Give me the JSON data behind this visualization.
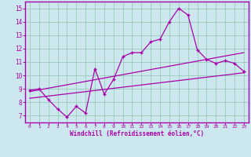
{
  "xlabel": "Windchill (Refroidissement éolien,°C)",
  "bg_color": "#cce8ee",
  "line_color": "#aa00aa",
  "grid_color": "#99ccbb",
  "xlim": [
    -0.5,
    23.5
  ],
  "ylim": [
    6.5,
    15.5
  ],
  "xticks": [
    0,
    1,
    2,
    3,
    4,
    5,
    6,
    7,
    8,
    9,
    10,
    11,
    12,
    13,
    14,
    15,
    16,
    17,
    18,
    19,
    20,
    21,
    22,
    23
  ],
  "yticks": [
    7,
    8,
    9,
    10,
    11,
    12,
    13,
    14,
    15
  ],
  "main_x": [
    0,
    1,
    2,
    3,
    4,
    5,
    6,
    7,
    8,
    9,
    10,
    11,
    12,
    13,
    14,
    15,
    16,
    17,
    18,
    19,
    20,
    21,
    22,
    23
  ],
  "main_y": [
    8.9,
    9.0,
    8.2,
    7.5,
    6.9,
    7.7,
    7.2,
    10.5,
    8.6,
    9.7,
    11.4,
    11.7,
    11.7,
    12.5,
    12.7,
    14.0,
    15.0,
    14.5,
    11.9,
    11.2,
    10.9,
    11.1,
    10.9,
    10.3
  ],
  "trend1_x": [
    0,
    23
  ],
  "trend1_y": [
    8.8,
    11.7
  ],
  "trend2_x": [
    0,
    23
  ],
  "trend2_y": [
    8.3,
    10.2
  ]
}
